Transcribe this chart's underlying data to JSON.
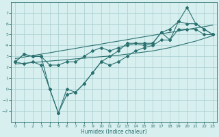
{
  "x": [
    0,
    1,
    2,
    3,
    4,
    5,
    6,
    7,
    8,
    9,
    10,
    11,
    12,
    13,
    14,
    15,
    16,
    17,
    18,
    19,
    20,
    21,
    22,
    23
  ],
  "y_main": [
    2.5,
    3.2,
    3.0,
    3.0,
    0.0,
    -2.2,
    0.0,
    -0.3,
    0.5,
    1.5,
    2.5,
    3.0,
    3.5,
    4.2,
    4.2,
    4.0,
    4.2,
    5.2,
    4.5,
    6.2,
    7.5,
    6.0,
    5.5,
    5.0
  ],
  "y_upper": [
    2.5,
    3.2,
    3.0,
    3.0,
    2.2,
    2.2,
    2.5,
    2.5,
    3.0,
    3.5,
    3.8,
    3.5,
    3.8,
    4.0,
    4.2,
    4.2,
    4.2,
    5.2,
    5.5,
    6.2,
    6.0,
    6.0,
    5.5,
    5.0
  ],
  "y_lower": [
    2.5,
    2.3,
    2.5,
    2.2,
    0.0,
    -2.2,
    -0.5,
    -0.3,
    0.5,
    1.5,
    2.5,
    2.2,
    2.5,
    3.0,
    3.5,
    3.8,
    4.0,
    4.5,
    4.5,
    5.5,
    5.5,
    5.5,
    5.0,
    5.0
  ],
  "y_trend_upper": [
    2.8,
    2.93,
    3.07,
    3.2,
    3.33,
    3.47,
    3.6,
    3.73,
    3.87,
    4.0,
    4.13,
    4.27,
    4.4,
    4.53,
    4.67,
    4.8,
    4.93,
    5.07,
    5.2,
    5.33,
    5.47,
    5.6,
    5.73,
    5.87
  ],
  "y_trend_lower": [
    2.3,
    2.36,
    2.43,
    2.5,
    2.57,
    2.63,
    2.7,
    2.77,
    2.83,
    2.9,
    2.97,
    3.03,
    3.1,
    3.2,
    3.3,
    3.4,
    3.5,
    3.65,
    3.8,
    4.0,
    4.2,
    4.4,
    4.65,
    4.9
  ],
  "line_color": "#2a7070",
  "bg_color": "#d8efef",
  "grid_color": "#a8cece",
  "xlabel": "Humidex (Indice chaleur)",
  "ylim": [
    -3,
    8
  ],
  "xlim": [
    -0.5,
    23.5
  ],
  "yticks": [
    -2,
    -1,
    0,
    1,
    2,
    3,
    4,
    5,
    6,
    7
  ],
  "xticks": [
    0,
    1,
    2,
    3,
    4,
    5,
    6,
    7,
    8,
    9,
    10,
    11,
    12,
    13,
    14,
    15,
    16,
    17,
    18,
    19,
    20,
    21,
    22,
    23
  ]
}
